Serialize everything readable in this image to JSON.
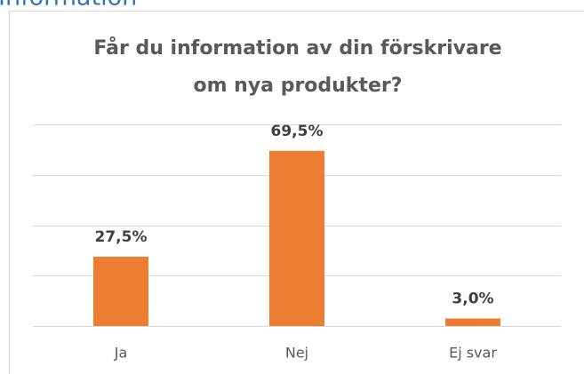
{
  "heading": "Information",
  "chart_data": {
    "type": "bar",
    "title": [
      "Får du information av din förskrivare",
      "om nya produkter?"
    ],
    "categories": [
      "Ja",
      "Nej",
      "Ej svar"
    ],
    "values": [
      27.5,
      69.5,
      3.0
    ],
    "value_labels": [
      "27,5%",
      "69,5%",
      "3,0%"
    ],
    "color": "#ed7d31",
    "ylim": [
      0,
      80
    ],
    "yticks": [
      0,
      20,
      40,
      60,
      80
    ],
    "grid": true
  }
}
